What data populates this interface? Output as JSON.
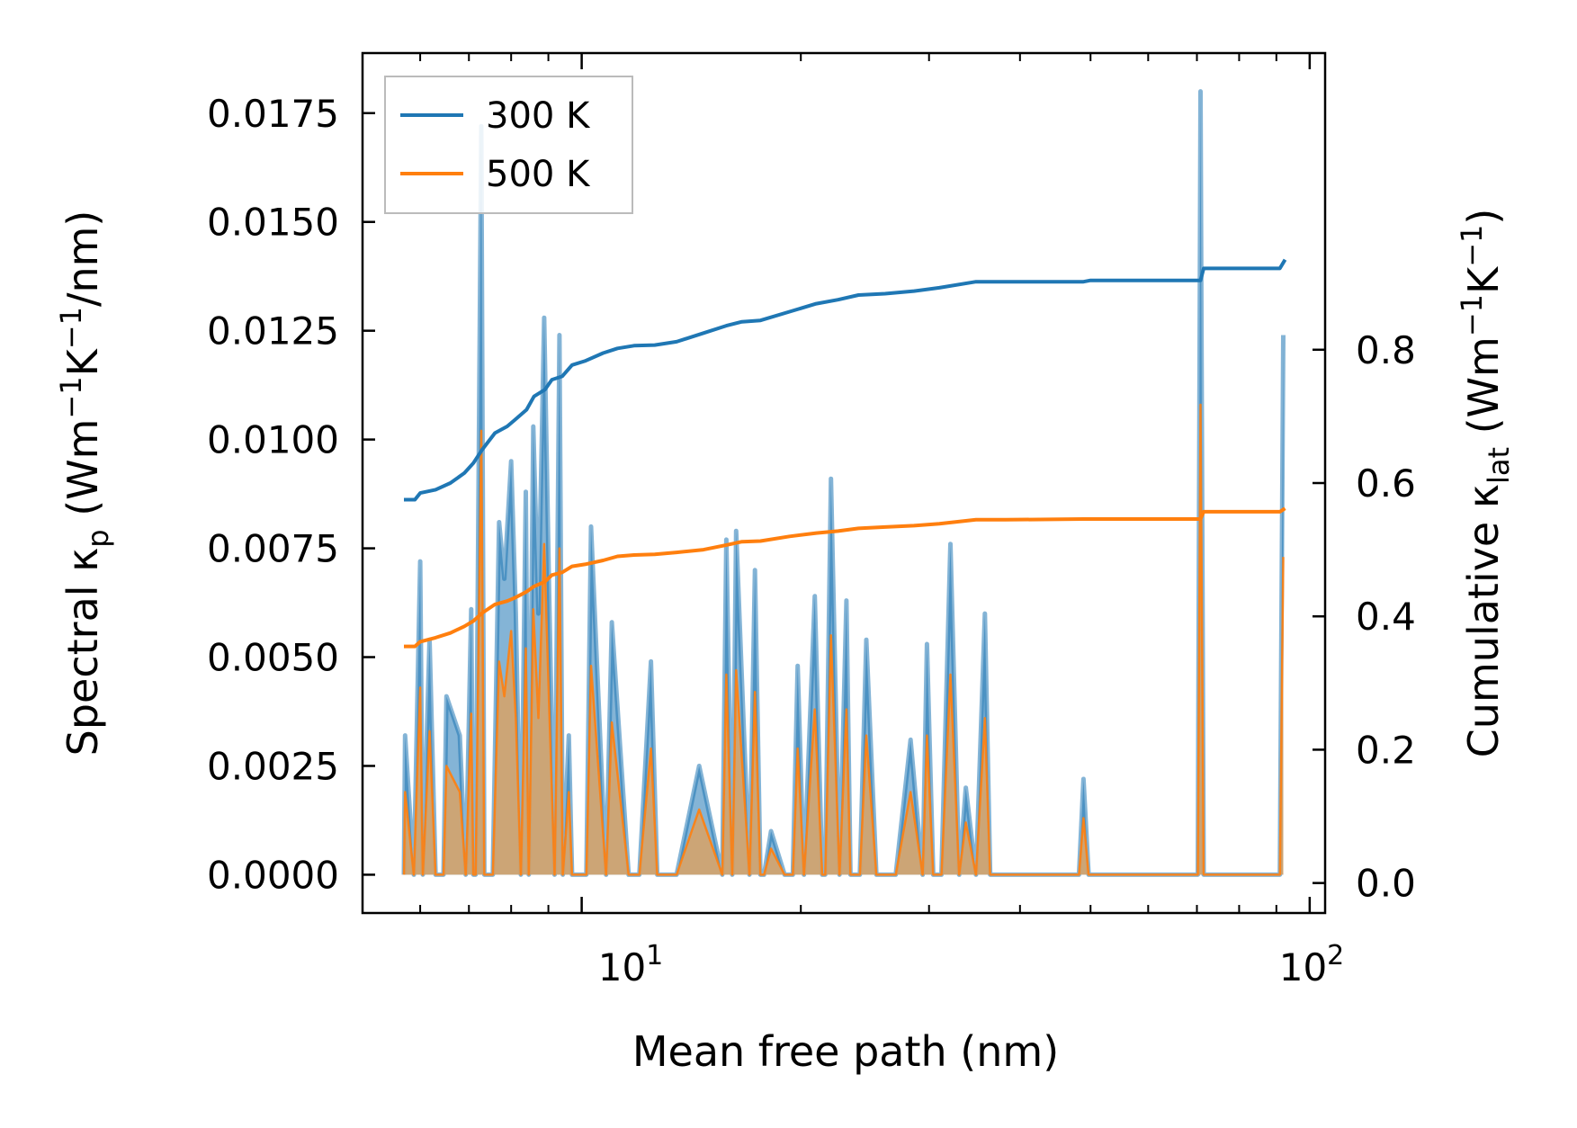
{
  "chart_data": {
    "type": "line",
    "xlabel": "Mean free path (nm)",
    "xscale": "log",
    "xlim": [
      5.0,
      105.0
    ],
    "y_left": {
      "label_main": "Spectral κ",
      "label_sub": "p",
      "label_unit_prefix": "(Wm",
      "label_exp1": "−1",
      "label_mid": "K",
      "label_exp2": "−1",
      "label_unit_suffix": "/nm)",
      "ylim": [
        -0.00088,
        0.01888
      ],
      "ticks": [
        0.0,
        0.0025,
        0.005,
        0.0075,
        0.01,
        0.0125,
        0.015,
        0.0175
      ],
      "tick_labels": [
        "0.0000",
        "0.0025",
        "0.0050",
        "0.0075",
        "0.0100",
        "0.0125",
        "0.0150",
        "0.0175"
      ]
    },
    "y_right": {
      "label_main": "Cumulative κ",
      "label_sub": "lat",
      "label_unit_prefix": "(Wm",
      "label_exp1": "−1",
      "label_mid": "K",
      "label_exp2": "−1",
      "label_unit_suffix": ")",
      "ylim": [
        -0.045,
        1.245
      ],
      "ticks": [
        0.0,
        0.2,
        0.4,
        0.6,
        0.8
      ],
      "tick_labels": [
        "0.0",
        "0.2",
        "0.4",
        "0.6",
        "0.8"
      ]
    },
    "x_tick_labels": [
      {
        "value": 10,
        "base": "10",
        "exp": "1"
      },
      {
        "value": 100,
        "base": "10",
        "exp": "2"
      }
    ],
    "colors": {
      "series_300": "#1f77b4",
      "series_500": "#ff7f0e",
      "fill_300": "#1f77b4",
      "fill_500": "#d4a36c",
      "axis": "#000000",
      "legend_border": "#bbbbbb"
    },
    "legend": {
      "position": "top-left",
      "entries": [
        "300 K",
        "500 K"
      ]
    },
    "series": [
      {
        "name": "300 K",
        "axis": "right",
        "kind": "cumulative",
        "x": [
          5.7,
          5.9,
          6.0,
          6.3,
          6.6,
          6.9,
          7.1,
          7.3,
          7.6,
          7.9,
          8.1,
          8.4,
          8.6,
          8.9,
          9.1,
          9.4,
          9.7,
          10.1,
          10.7,
          11.2,
          11.8,
          12.6,
          13.5,
          14.7,
          15.8,
          16.6,
          17.6,
          19.3,
          21.0,
          22.5,
          24.0,
          26.1,
          28.6,
          31.0,
          34.8,
          36.0,
          38.2,
          48.9,
          50.0,
          70.8,
          71.5,
          91.0,
          92.5
        ],
        "values": [
          0.575,
          0.575,
          0.585,
          0.59,
          0.6,
          0.615,
          0.63,
          0.65,
          0.675,
          0.685,
          0.695,
          0.71,
          0.73,
          0.74,
          0.755,
          0.76,
          0.777,
          0.783,
          0.795,
          0.802,
          0.806,
          0.807,
          0.812,
          0.825,
          0.836,
          0.842,
          0.844,
          0.857,
          0.869,
          0.875,
          0.882,
          0.884,
          0.888,
          0.893,
          0.902,
          0.902,
          0.902,
          0.902,
          0.904,
          0.904,
          0.922,
          0.922,
          0.935
        ]
      },
      {
        "name": "500 K",
        "axis": "right",
        "kind": "cumulative",
        "x": [
          5.7,
          5.9,
          6.0,
          6.3,
          6.6,
          6.9,
          7.1,
          7.3,
          7.6,
          7.9,
          8.1,
          8.4,
          8.6,
          8.9,
          9.1,
          9.4,
          9.7,
          10.1,
          10.7,
          11.2,
          11.8,
          12.6,
          13.5,
          14.7,
          15.8,
          16.6,
          17.6,
          19.3,
          21.0,
          22.5,
          24.0,
          26.1,
          28.6,
          31.0,
          34.8,
          36.0,
          38.2,
          48.9,
          50.0,
          70.8,
          71.5,
          91.0,
          92.5
        ],
        "values": [
          0.355,
          0.355,
          0.362,
          0.368,
          0.375,
          0.385,
          0.393,
          0.405,
          0.418,
          0.423,
          0.428,
          0.437,
          0.445,
          0.452,
          0.462,
          0.466,
          0.475,
          0.478,
          0.484,
          0.49,
          0.492,
          0.493,
          0.496,
          0.5,
          0.507,
          0.512,
          0.513,
          0.52,
          0.525,
          0.528,
          0.532,
          0.534,
          0.536,
          0.539,
          0.545,
          0.545,
          0.545,
          0.546,
          0.546,
          0.546,
          0.557,
          0.557,
          0.562
        ]
      },
      {
        "name": "300 K spectral",
        "axis": "left",
        "kind": "spectral-fill",
        "x": [
          5.7,
          5.72,
          5.88,
          6.0,
          6.05,
          6.18,
          6.3,
          6.46,
          6.52,
          6.8,
          6.93,
          7.05,
          7.1,
          7.15,
          7.28,
          7.35,
          7.55,
          7.7,
          7.83,
          8.0,
          8.12,
          8.25,
          8.38,
          8.46,
          8.58,
          8.72,
          8.88,
          9.02,
          9.18,
          9.32,
          9.42,
          9.6,
          9.7,
          10.15,
          10.3,
          10.8,
          11.0,
          11.6,
          12.0,
          12.45,
          12.7,
          13.2,
          13.5,
          14.5,
          15.6,
          15.8,
          16.1,
          16.3,
          17.0,
          17.3,
          17.6,
          17.8,
          18.2,
          19.0,
          19.5,
          19.8,
          20.2,
          20.9,
          21.4,
          21.6,
          22.0,
          22.6,
          23.1,
          23.4,
          24.1,
          24.6,
          25.4,
          26.2,
          27.0,
          28.3,
          29.4,
          29.8,
          30.4,
          31.2,
          32.1,
          33.0,
          33.7,
          34.8,
          35.8,
          36.4,
          37.1,
          48.2,
          48.9,
          49.7,
          70.2,
          70.8,
          71.5,
          91.0,
          92.0
        ],
        "values": [
          0.0,
          0.0032,
          0.0,
          0.0072,
          0.0,
          0.0054,
          0.0,
          0.0,
          0.0041,
          0.0032,
          0.0,
          0.0061,
          0.0,
          0.0,
          0.0172,
          0.0,
          0.0,
          0.0081,
          0.0068,
          0.0095,
          0.006,
          0.0,
          0.0088,
          0.0,
          0.0103,
          0.006,
          0.0128,
          0.0065,
          0.0,
          0.0124,
          0.0,
          0.0032,
          0.0,
          0.0,
          0.008,
          0.0,
          0.0058,
          0.0,
          0.0,
          0.0049,
          0.0,
          0.0,
          0.0,
          0.0025,
          0.0,
          0.0077,
          0.0,
          0.0079,
          0.0,
          0.007,
          0.0,
          0.0,
          0.001,
          0.0,
          0.0,
          0.0048,
          0.0,
          0.0064,
          0.0,
          0.0,
          0.0091,
          0.0,
          0.0063,
          0.0,
          0.0,
          0.0054,
          0.0,
          0.0,
          0.0,
          0.0031,
          0.0,
          0.0053,
          0.0,
          0.0,
          0.0076,
          0.0,
          0.002,
          0.0,
          0.006,
          0.0,
          0.0,
          0.0,
          0.0022,
          0.0,
          0.0,
          0.018,
          0.0,
          0.0,
          0.0124
        ]
      },
      {
        "name": "500 K spectral",
        "axis": "left",
        "kind": "spectral-fill",
        "x": [
          5.7,
          5.72,
          5.88,
          6.0,
          6.05,
          6.18,
          6.3,
          6.46,
          6.52,
          6.8,
          6.93,
          7.05,
          7.1,
          7.15,
          7.28,
          7.35,
          7.55,
          7.7,
          7.83,
          8.0,
          8.12,
          8.25,
          8.38,
          8.46,
          8.58,
          8.72,
          8.88,
          9.02,
          9.18,
          9.32,
          9.42,
          9.6,
          9.7,
          10.15,
          10.3,
          10.8,
          11.0,
          11.6,
          12.0,
          12.45,
          12.7,
          13.2,
          13.5,
          14.5,
          15.6,
          15.8,
          16.1,
          16.3,
          17.0,
          17.3,
          17.6,
          17.8,
          18.2,
          19.0,
          19.5,
          19.8,
          20.2,
          20.9,
          21.4,
          21.6,
          22.0,
          22.6,
          23.1,
          23.4,
          24.1,
          24.6,
          25.4,
          26.2,
          27.0,
          28.3,
          29.4,
          29.8,
          30.4,
          31.2,
          32.1,
          33.0,
          33.7,
          34.8,
          35.8,
          36.4,
          37.1,
          48.2,
          48.9,
          49.7,
          70.2,
          70.8,
          71.5,
          91.0,
          92.0
        ],
        "values": [
          0.0,
          0.0019,
          0.0,
          0.0043,
          0.0,
          0.0033,
          0.0,
          0.0,
          0.0025,
          0.0019,
          0.0,
          0.0037,
          0.0,
          0.0,
          0.0102,
          0.0,
          0.0,
          0.0049,
          0.0041,
          0.0056,
          0.0036,
          0.0,
          0.0052,
          0.0,
          0.0061,
          0.0036,
          0.0076,
          0.0039,
          0.0,
          0.0075,
          0.0,
          0.0019,
          0.0,
          0.0,
          0.0048,
          0.0,
          0.0035,
          0.0,
          0.0,
          0.0029,
          0.0,
          0.0,
          0.0,
          0.0015,
          0.0,
          0.0046,
          0.0,
          0.0047,
          0.0,
          0.0042,
          0.0,
          0.0,
          0.0006,
          0.0,
          0.0,
          0.0029,
          0.0,
          0.0038,
          0.0,
          0.0,
          0.0055,
          0.0,
          0.0038,
          0.0,
          0.0,
          0.0032,
          0.0,
          0.0,
          0.0,
          0.0019,
          0.0,
          0.0032,
          0.0,
          0.0,
          0.0046,
          0.0,
          0.0012,
          0.0,
          0.0036,
          0.0,
          0.0,
          0.0,
          0.0013,
          0.0,
          0.0,
          0.0108,
          0.0,
          0.0,
          0.0073
        ]
      }
    ]
  }
}
